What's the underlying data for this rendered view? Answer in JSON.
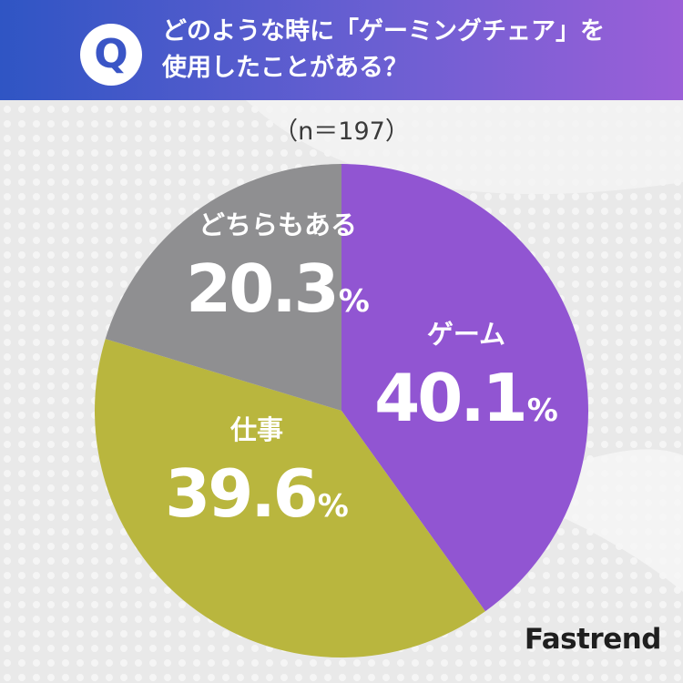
{
  "header": {
    "badge": "Q",
    "question_line1": "どのような時に「ゲーミングチェア」を",
    "question_line2": "使用したことがある？"
  },
  "sample_size": "（n＝197）",
  "brand": "Fastrend",
  "chart_data": {
    "type": "pie",
    "title": "どのような時に「ゲーミングチェア」を使用したことがある？",
    "unit": "%",
    "slices": [
      {
        "label": "ゲーム",
        "value": 40.1,
        "value_text": "40.1",
        "color": "#9155d2"
      },
      {
        "label": "仕事",
        "value": 39.6,
        "value_text": "39.6",
        "color": "#b9b63e"
      },
      {
        "label": "どちらもある",
        "value": 20.3,
        "value_text": "20.3",
        "color": "#8f8f91"
      }
    ]
  }
}
